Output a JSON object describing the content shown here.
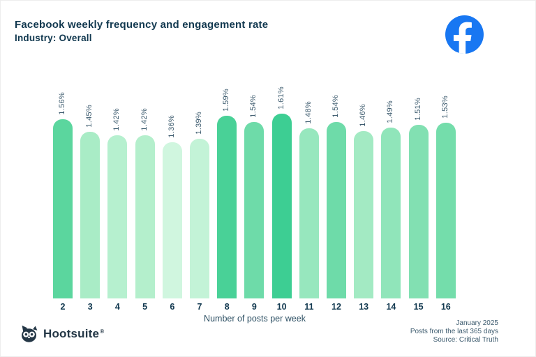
{
  "header": {
    "title": "Facebook weekly frequency and engagement rate",
    "subtitle": "Industry: Overall"
  },
  "brand": {
    "facebook_icon_color": "#1877F2"
  },
  "chart_data": {
    "type": "bar",
    "title": "Facebook weekly frequency and engagement rate",
    "subtitle": "Industry: Overall",
    "categories": [
      "2",
      "3",
      "4",
      "5",
      "6",
      "7",
      "8",
      "9",
      "10",
      "11",
      "12",
      "13",
      "14",
      "15",
      "16"
    ],
    "values": [
      1.56,
      1.45,
      1.42,
      1.42,
      1.36,
      1.39,
      1.59,
      1.54,
      1.61,
      1.48,
      1.54,
      1.46,
      1.49,
      1.51,
      1.53
    ],
    "value_labels": [
      "1.56%",
      "1.45%",
      "1.42%",
      "1.42%",
      "1.36%",
      "1.39%",
      "1.59%",
      "1.54%",
      "1.61%",
      "1.48%",
      "1.54%",
      "1.46%",
      "1.49%",
      "1.51%",
      "1.53%"
    ],
    "bar_colors": [
      "#5BD69E",
      "#A9ECC6",
      "#B6F0CF",
      "#B4EFCC",
      "#D0F6DF",
      "#C3F3D7",
      "#49D197",
      "#6EDBA9",
      "#3DCE93",
      "#97E7BE",
      "#6EDBA9",
      "#A3EAC3",
      "#90E5BA",
      "#82E0B2",
      "#74DDAB"
    ],
    "xlabel": "Number of posts per week",
    "ylabel": "",
    "ylim": [
      0,
      1.7
    ],
    "grid": false,
    "legend": "none",
    "value_suffix": "%"
  },
  "footer": {
    "logo_text": "Hootsuite",
    "registered_mark": "®",
    "note_lines": [
      "January 2025",
      "Posts from the last 365 days",
      "Source: Critical Truth"
    ]
  }
}
